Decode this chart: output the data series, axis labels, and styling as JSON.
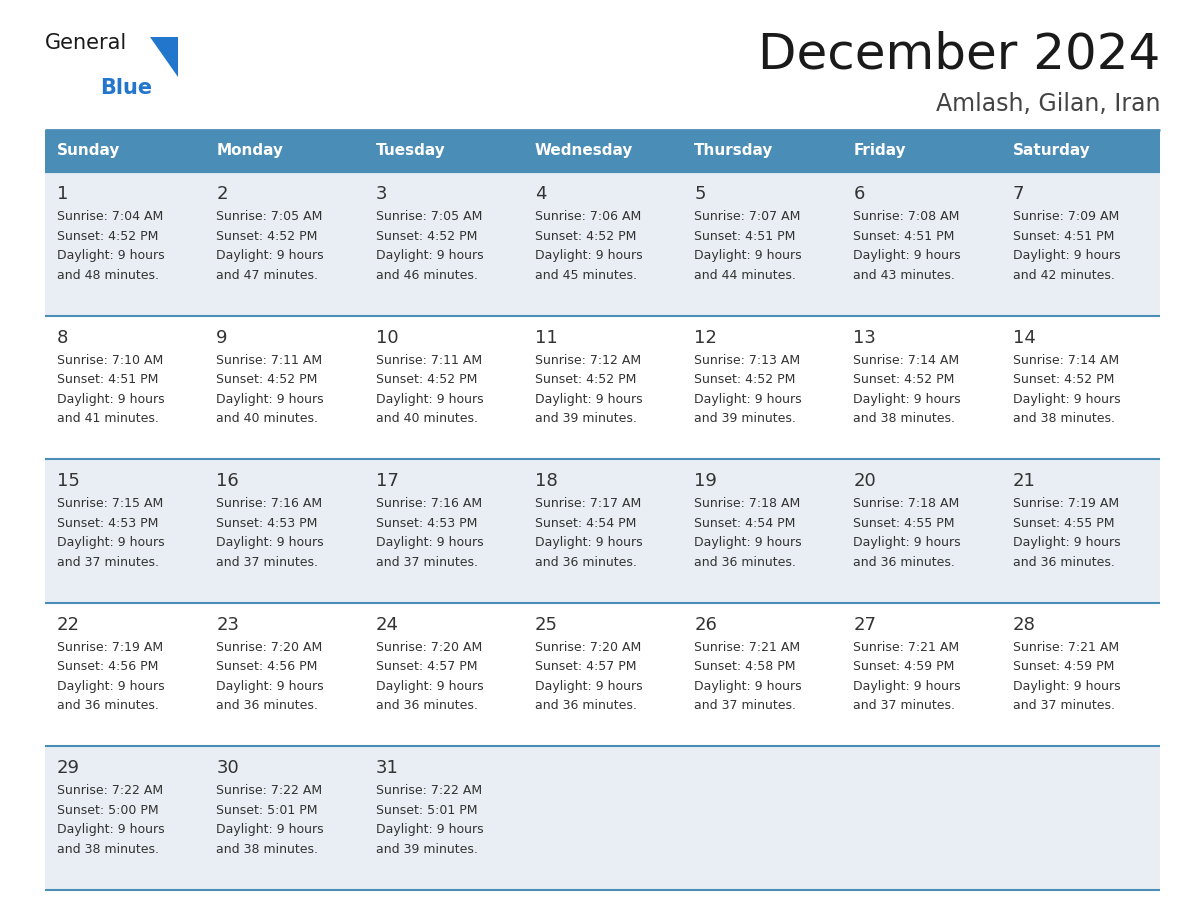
{
  "title": "December 2024",
  "subtitle": "Amlash, Gilan, Iran",
  "header_color": "#4A8DB7",
  "header_text_color": "#FFFFFF",
  "row_even_color": "#E8EEF4",
  "row_odd_color": "#FFFFFF",
  "border_color": "#4A8DB7",
  "text_color": "#333333",
  "day_num_color": "#333333",
  "days_of_week": [
    "Sunday",
    "Monday",
    "Tuesday",
    "Wednesday",
    "Thursday",
    "Friday",
    "Saturday"
  ],
  "calendar_data": [
    [
      {
        "day": 1,
        "sunrise": "7:04 AM",
        "sunset": "4:52 PM",
        "daylight_h": "9 hours",
        "daylight_m": "and 48 minutes."
      },
      {
        "day": 2,
        "sunrise": "7:05 AM",
        "sunset": "4:52 PM",
        "daylight_h": "9 hours",
        "daylight_m": "and 47 minutes."
      },
      {
        "day": 3,
        "sunrise": "7:05 AM",
        "sunset": "4:52 PM",
        "daylight_h": "9 hours",
        "daylight_m": "and 46 minutes."
      },
      {
        "day": 4,
        "sunrise": "7:06 AM",
        "sunset": "4:52 PM",
        "daylight_h": "9 hours",
        "daylight_m": "and 45 minutes."
      },
      {
        "day": 5,
        "sunrise": "7:07 AM",
        "sunset": "4:51 PM",
        "daylight_h": "9 hours",
        "daylight_m": "and 44 minutes."
      },
      {
        "day": 6,
        "sunrise": "7:08 AM",
        "sunset": "4:51 PM",
        "daylight_h": "9 hours",
        "daylight_m": "and 43 minutes."
      },
      {
        "day": 7,
        "sunrise": "7:09 AM",
        "sunset": "4:51 PM",
        "daylight_h": "9 hours",
        "daylight_m": "and 42 minutes."
      }
    ],
    [
      {
        "day": 8,
        "sunrise": "7:10 AM",
        "sunset": "4:51 PM",
        "daylight_h": "9 hours",
        "daylight_m": "and 41 minutes."
      },
      {
        "day": 9,
        "sunrise": "7:11 AM",
        "sunset": "4:52 PM",
        "daylight_h": "9 hours",
        "daylight_m": "and 40 minutes."
      },
      {
        "day": 10,
        "sunrise": "7:11 AM",
        "sunset": "4:52 PM",
        "daylight_h": "9 hours",
        "daylight_m": "and 40 minutes."
      },
      {
        "day": 11,
        "sunrise": "7:12 AM",
        "sunset": "4:52 PM",
        "daylight_h": "9 hours",
        "daylight_m": "and 39 minutes."
      },
      {
        "day": 12,
        "sunrise": "7:13 AM",
        "sunset": "4:52 PM",
        "daylight_h": "9 hours",
        "daylight_m": "and 39 minutes."
      },
      {
        "day": 13,
        "sunrise": "7:14 AM",
        "sunset": "4:52 PM",
        "daylight_h": "9 hours",
        "daylight_m": "and 38 minutes."
      },
      {
        "day": 14,
        "sunrise": "7:14 AM",
        "sunset": "4:52 PM",
        "daylight_h": "9 hours",
        "daylight_m": "and 38 minutes."
      }
    ],
    [
      {
        "day": 15,
        "sunrise": "7:15 AM",
        "sunset": "4:53 PM",
        "daylight_h": "9 hours",
        "daylight_m": "and 37 minutes."
      },
      {
        "day": 16,
        "sunrise": "7:16 AM",
        "sunset": "4:53 PM",
        "daylight_h": "9 hours",
        "daylight_m": "and 37 minutes."
      },
      {
        "day": 17,
        "sunrise": "7:16 AM",
        "sunset": "4:53 PM",
        "daylight_h": "9 hours",
        "daylight_m": "and 37 minutes."
      },
      {
        "day": 18,
        "sunrise": "7:17 AM",
        "sunset": "4:54 PM",
        "daylight_h": "9 hours",
        "daylight_m": "and 36 minutes."
      },
      {
        "day": 19,
        "sunrise": "7:18 AM",
        "sunset": "4:54 PM",
        "daylight_h": "9 hours",
        "daylight_m": "and 36 minutes."
      },
      {
        "day": 20,
        "sunrise": "7:18 AM",
        "sunset": "4:55 PM",
        "daylight_h": "9 hours",
        "daylight_m": "and 36 minutes."
      },
      {
        "day": 21,
        "sunrise": "7:19 AM",
        "sunset": "4:55 PM",
        "daylight_h": "9 hours",
        "daylight_m": "and 36 minutes."
      }
    ],
    [
      {
        "day": 22,
        "sunrise": "7:19 AM",
        "sunset": "4:56 PM",
        "daylight_h": "9 hours",
        "daylight_m": "and 36 minutes."
      },
      {
        "day": 23,
        "sunrise": "7:20 AM",
        "sunset": "4:56 PM",
        "daylight_h": "9 hours",
        "daylight_m": "and 36 minutes."
      },
      {
        "day": 24,
        "sunrise": "7:20 AM",
        "sunset": "4:57 PM",
        "daylight_h": "9 hours",
        "daylight_m": "and 36 minutes."
      },
      {
        "day": 25,
        "sunrise": "7:20 AM",
        "sunset": "4:57 PM",
        "daylight_h": "9 hours",
        "daylight_m": "and 36 minutes."
      },
      {
        "day": 26,
        "sunrise": "7:21 AM",
        "sunset": "4:58 PM",
        "daylight_h": "9 hours",
        "daylight_m": "and 37 minutes."
      },
      {
        "day": 27,
        "sunrise": "7:21 AM",
        "sunset": "4:59 PM",
        "daylight_h": "9 hours",
        "daylight_m": "and 37 minutes."
      },
      {
        "day": 28,
        "sunrise": "7:21 AM",
        "sunset": "4:59 PM",
        "daylight_h": "9 hours",
        "daylight_m": "and 37 minutes."
      }
    ],
    [
      {
        "day": 29,
        "sunrise": "7:22 AM",
        "sunset": "5:00 PM",
        "daylight_h": "9 hours",
        "daylight_m": "and 38 minutes."
      },
      {
        "day": 30,
        "sunrise": "7:22 AM",
        "sunset": "5:01 PM",
        "daylight_h": "9 hours",
        "daylight_m": "and 38 minutes."
      },
      {
        "day": 31,
        "sunrise": "7:22 AM",
        "sunset": "5:01 PM",
        "daylight_h": "9 hours",
        "daylight_m": "and 39 minutes."
      },
      null,
      null,
      null,
      null
    ]
  ],
  "logo_text_general": "General",
  "logo_text_blue": "Blue",
  "title_fontsize": 36,
  "subtitle_fontsize": 17,
  "header_fontsize": 11,
  "day_num_fontsize": 13,
  "cell_text_fontsize": 9
}
